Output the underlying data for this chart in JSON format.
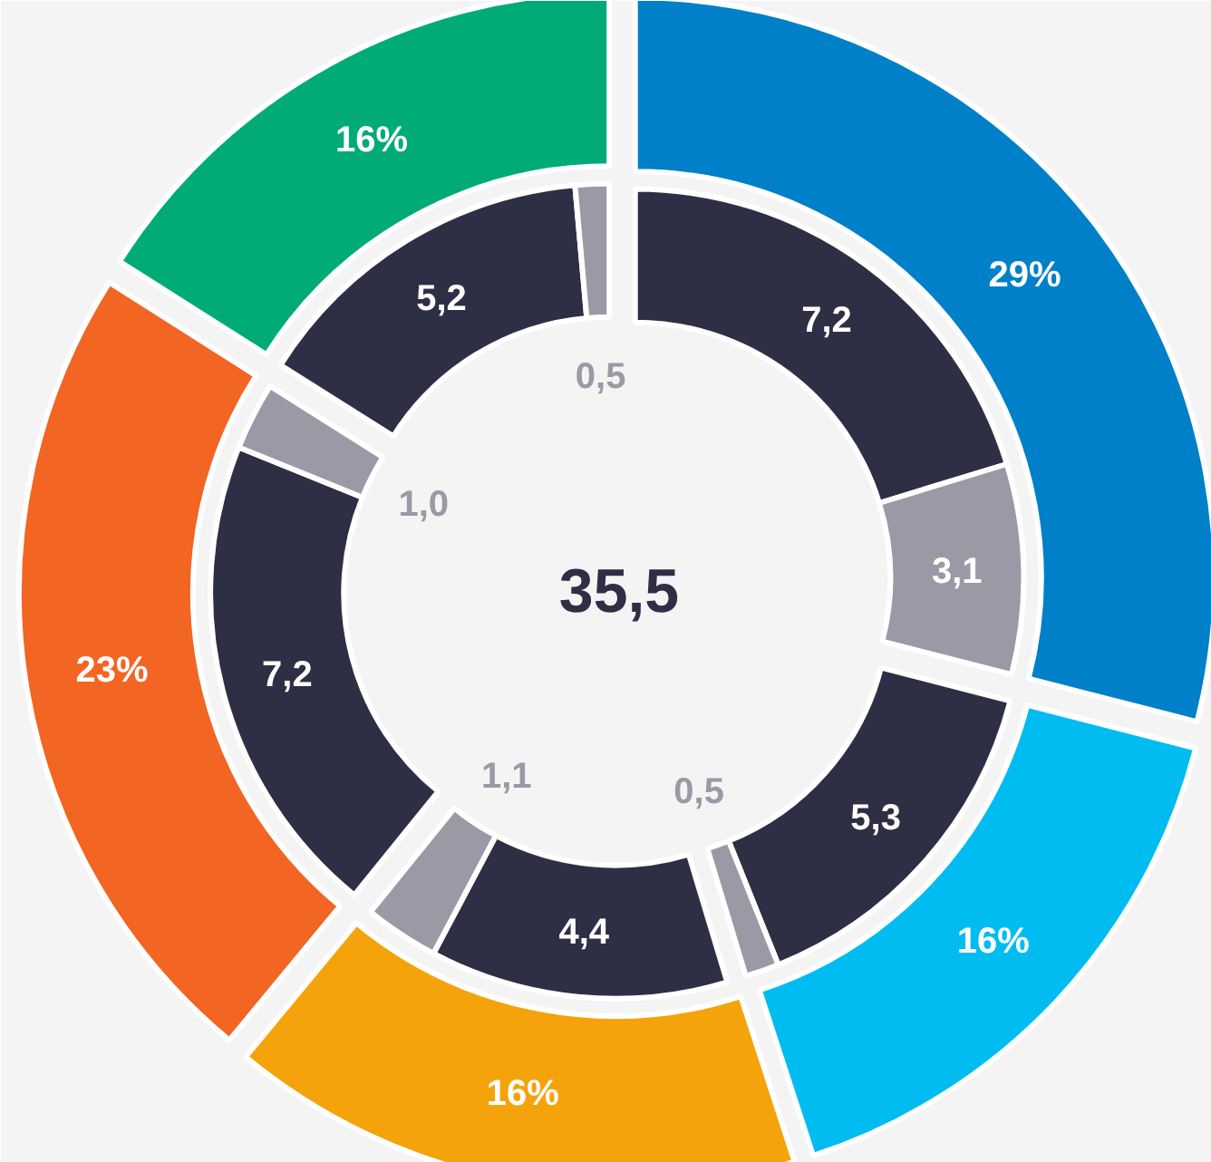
{
  "chart_data": {
    "type": "donut",
    "annotations": [
      "35,5"
    ],
    "series": [
      {
        "values": [
          29,
          16,
          16,
          23,
          16
        ],
        "colors": [
          "#0080c8",
          "#00bcf0",
          "#f5a30a",
          "#f26522",
          "#00ab78"
        ],
        "value_labels": [
          "29%",
          "16%",
          "16%",
          "23%",
          "16%"
        ]
      },
      {
        "values": [
          7.2,
          3.1,
          5.3,
          0.5,
          4.4,
          1.1,
          7.2,
          1.0,
          5.2,
          0.5
        ],
        "colors": [
          "#2e2e45",
          "#9a9aa6",
          "#2e2e45",
          "#9a9aa6",
          "#2e2e45",
          "#9a9aa6",
          "#2e2e45",
          "#9a9aa6",
          "#2e2e45",
          "#9a9aa6"
        ],
        "value_labels": [
          "7,2",
          "3,1",
          "5,3",
          "0,5",
          "4,4",
          "1,1",
          "7,2",
          "1,0",
          "5,2",
          "0,5"
        ]
      }
    ]
  }
}
